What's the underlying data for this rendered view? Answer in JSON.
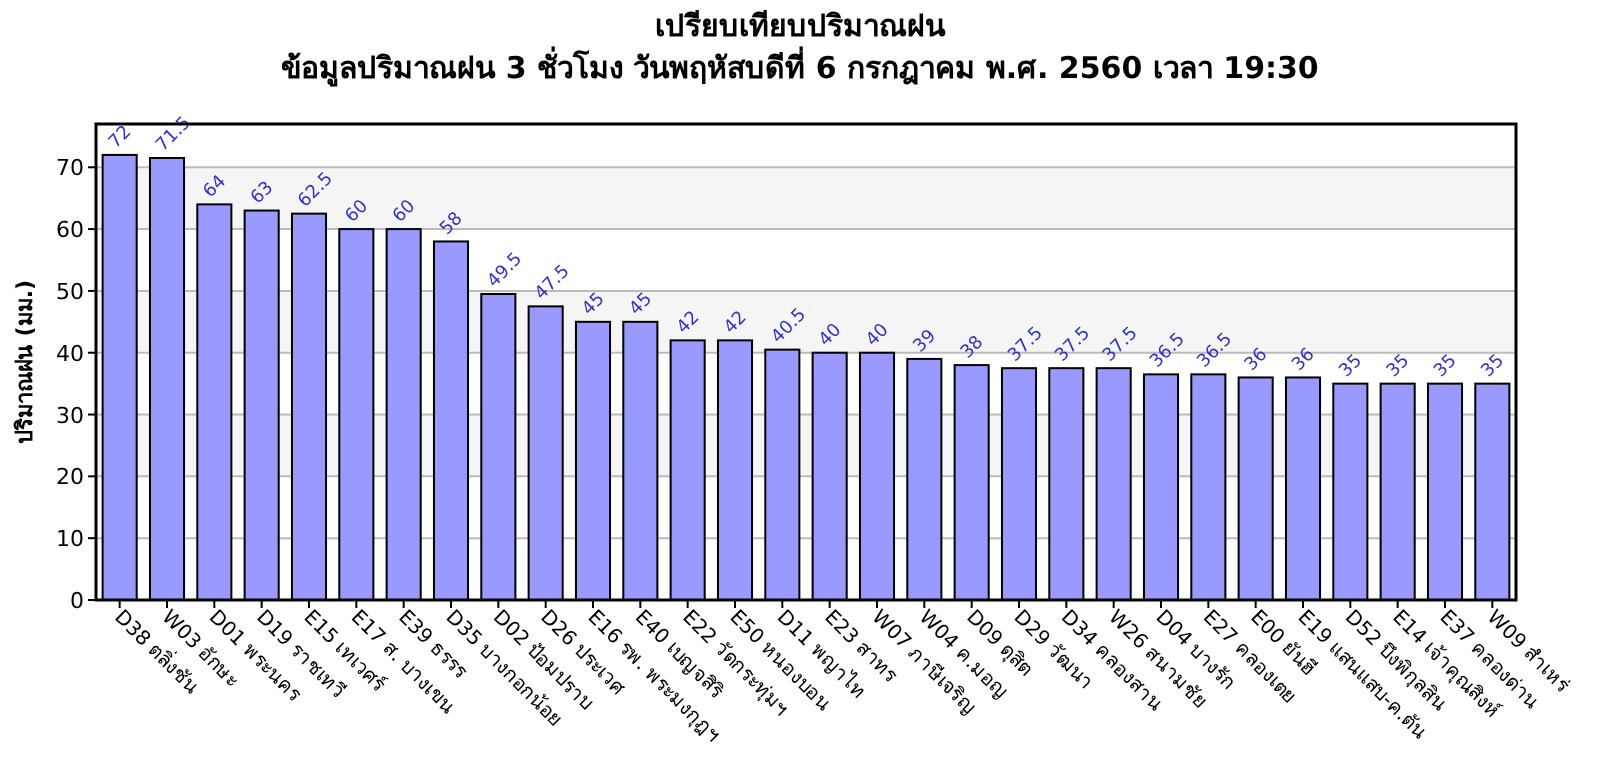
{
  "chart_data": {
    "type": "bar",
    "title": "เปรียบเทียบปริมาณฝน",
    "subtitle": "ข้อมูลปริมาณฝน 3 ชั่วโมง วันพฤหัสบดีที่ 6 กรกฎาคม พ.ศ. 2560 เวลา 19:30",
    "ylabel": "ปริมาณฝน (มม.)",
    "categories": [
      "D38 ตลิ่งชัน",
      "W03 อักษะ",
      "D01 พระนคร",
      "D19 ราชเทวี",
      "E15 เทเวศร์",
      "E17 ส. บางเขน",
      "E39 ธรรร",
      "D35 บางกอกน้อย",
      "D02 ป้อมปราบ",
      "D26 ประเวศ",
      "E16 รพ. พระมงกุฎฯ",
      "E40 เบญจสิริ",
      "E22 วัดกระทุ่มฯ",
      "E50 หนองบอน",
      "D11 พญาไท",
      "E23 สาทร",
      "W07 ภาษีเจริญ",
      "W04 ค.มอญ",
      "D09 ดุสิต",
      "D29 วัฒนา",
      "D34 คลองสาน",
      "W26 สนามชัย",
      "D04 บางรัก",
      "E27 คลองเตย",
      "E00 ยันฮี",
      "E19 แสนแสบ-ค.ตัน",
      "D52 บึงพิกุลสิน",
      "E14 เจ้าคุณสิงห์",
      "E37 คลองด่าน",
      "W09 สำเหร่"
    ],
    "values": [
      72,
      71.5,
      64,
      63,
      62.5,
      60,
      60,
      58,
      49.5,
      47.5,
      45,
      45,
      42,
      42,
      40.5,
      40,
      40,
      39,
      38,
      37.5,
      37.5,
      37.5,
      36.5,
      36.5,
      36,
      36,
      35,
      35,
      35,
      35
    ],
    "color": "#9999ff",
    "ylim": [
      0,
      77
    ],
    "yticks": [
      0,
      10,
      20,
      30,
      40,
      50,
      60,
      70
    ],
    "grid": "y",
    "data_labels": true
  }
}
